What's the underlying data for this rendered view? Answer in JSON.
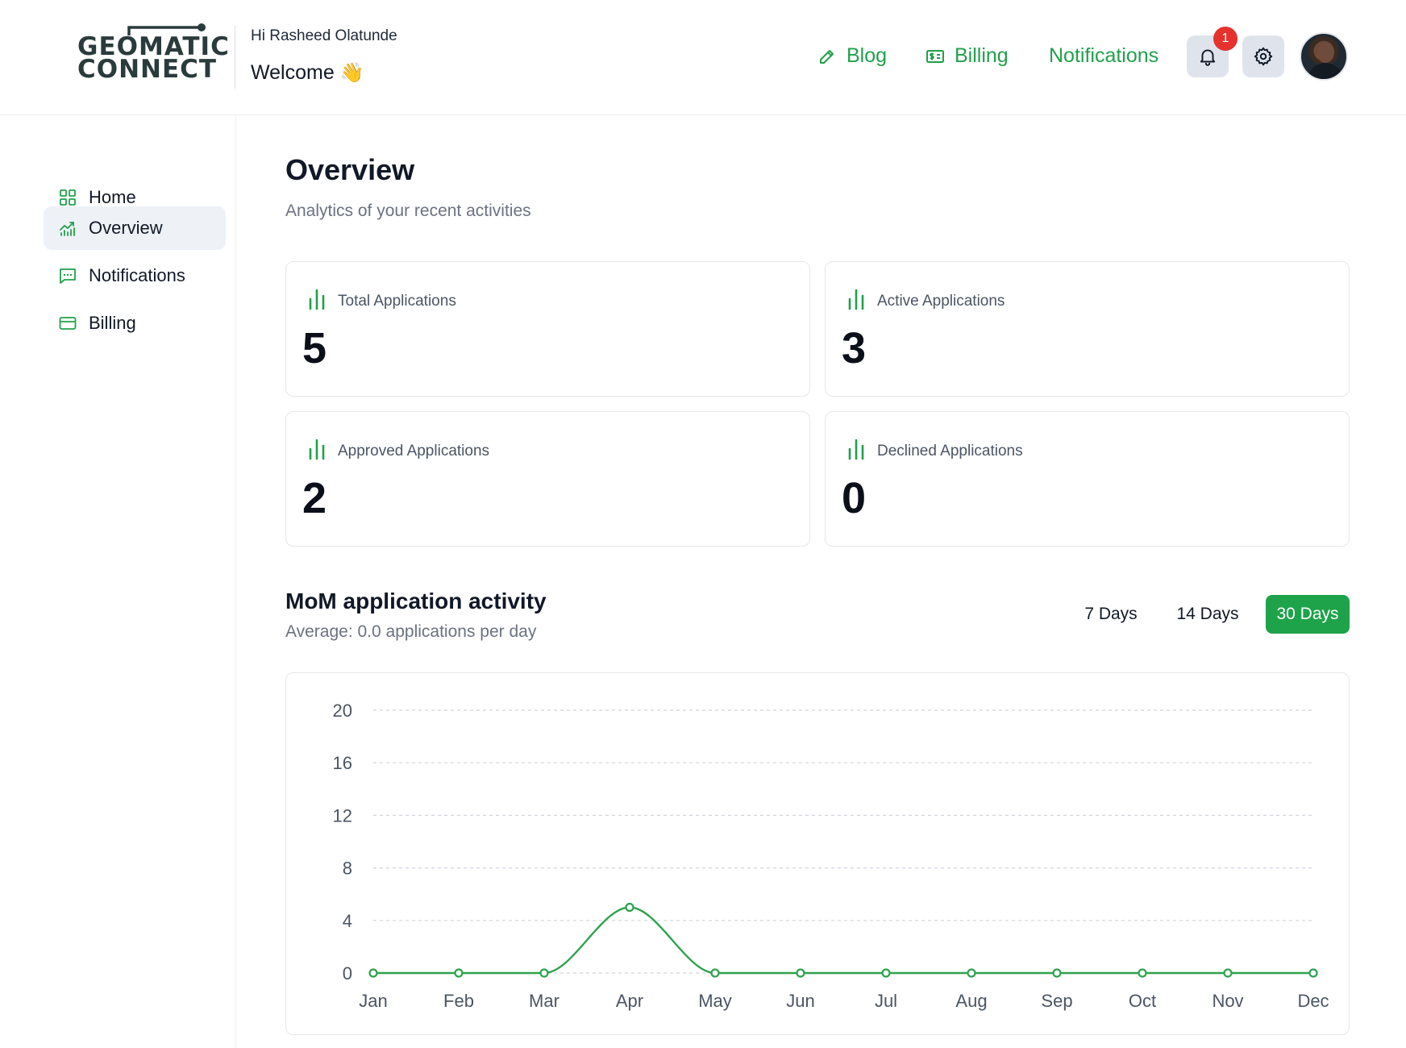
{
  "header": {
    "logo": {
      "line1": "GEOMATIC",
      "line2": "CONNECT"
    },
    "greeting": "Hi Rasheed Olatunde",
    "welcome": "Welcome",
    "welcome_emoji": "👋",
    "nav": [
      {
        "label": "Blog",
        "icon": "pencil-icon"
      },
      {
        "label": "Billing",
        "icon": "money-icon"
      },
      {
        "label": "Notifications",
        "icon": ""
      }
    ],
    "notification_count": "1",
    "accent_color": "#22a04b"
  },
  "sidebar": {
    "items": [
      {
        "label": "Home",
        "icon": "grid-icon",
        "active": false
      },
      {
        "label": "Overview",
        "icon": "chart-icon",
        "active": true
      },
      {
        "label": "Notifications",
        "icon": "message-icon",
        "active": false
      },
      {
        "label": "Billing",
        "icon": "card-icon",
        "active": false
      }
    ]
  },
  "main": {
    "title": "Overview",
    "subtitle": "Analytics of your recent activities",
    "cards": [
      {
        "label": "Total Applications",
        "value": "5"
      },
      {
        "label": "Active Applications",
        "value": "3"
      },
      {
        "label": "Approved Applications",
        "value": "2"
      },
      {
        "label": "Declined Applications",
        "value": "0"
      }
    ],
    "activity": {
      "title": "MoM application activity",
      "subtitle": "Average: 0.0 applications per day",
      "ranges": [
        {
          "label": "7 Days",
          "active": false
        },
        {
          "label": "14 Days",
          "active": false
        },
        {
          "label": "30 Days",
          "active": true
        }
      ]
    }
  },
  "chart_data": {
    "type": "line",
    "categories": [
      "Jan",
      "Feb",
      "Mar",
      "Apr",
      "May",
      "Jun",
      "Jul",
      "Aug",
      "Sep",
      "Oct",
      "Nov",
      "Dec"
    ],
    "series": [
      {
        "values": [
          0,
          0,
          0,
          5,
          0,
          0,
          0,
          0,
          0,
          0,
          0,
          0
        ],
        "color": "#2ea24e"
      }
    ],
    "yticks": [
      0,
      4,
      8,
      12,
      16,
      20
    ],
    "ylim": [
      0,
      20
    ],
    "grid": true,
    "title": "",
    "xlabel": "",
    "ylabel": ""
  }
}
